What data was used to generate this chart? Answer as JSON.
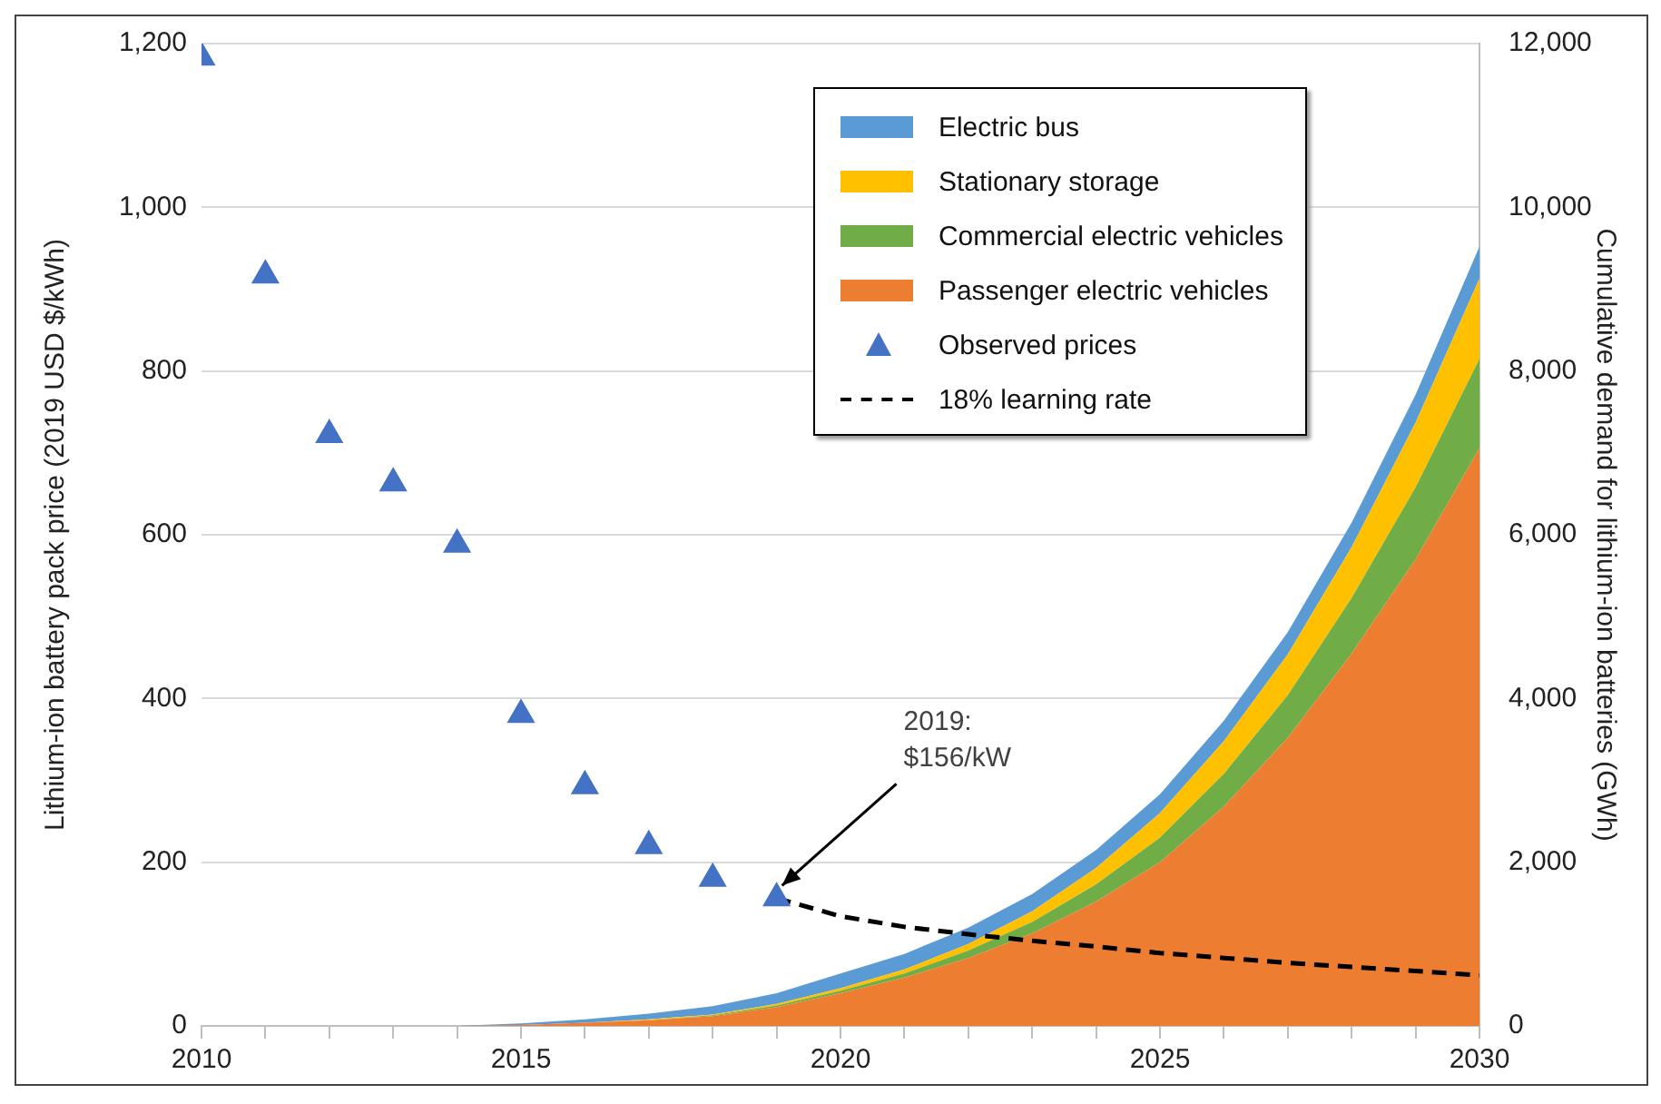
{
  "chart_data": {
    "type": "area",
    "ylabel": "Lithium-ion battery pack price (2019 USD $/kWh)",
    "y2label": "Cumulative demand for lithium-ion batteries (GWh)",
    "x": [
      2010,
      2011,
      2012,
      2013,
      2014,
      2015,
      2016,
      2017,
      2018,
      2019,
      2020,
      2021,
      2022,
      2023,
      2024,
      2025,
      2026,
      2027,
      2028,
      2029,
      2030
    ],
    "xlim": [
      2010,
      2030
    ],
    "xticks": [
      2010,
      {
        "value": 2011,
        "label": null
      },
      {
        "value": 2012,
        "label": null
      },
      {
        "value": 2013,
        "label": null
      },
      {
        "value": 2014,
        "label": null
      },
      2015,
      {
        "value": 2016,
        "label": null
      },
      {
        "value": 2017,
        "label": null
      },
      {
        "value": 2018,
        "label": null
      },
      {
        "value": 2019,
        "label": null
      },
      2020,
      {
        "value": 2021,
        "label": null
      },
      {
        "value": 2022,
        "label": null
      },
      {
        "value": 2023,
        "label": null
      },
      {
        "value": 2024,
        "label": null
      },
      2025,
      {
        "value": 2026,
        "label": null
      },
      {
        "value": 2027,
        "label": null
      },
      {
        "value": 2028,
        "label": null
      },
      {
        "value": 2029,
        "label": null
      },
      2030
    ],
    "ylim": [
      0,
      1200
    ],
    "yticks": [
      0,
      200,
      400,
      600,
      800,
      {
        "value": 1000,
        "label": "1,000"
      },
      {
        "value": 1200,
        "label": "1,200"
      }
    ],
    "y2lim": [
      0,
      12000
    ],
    "y2ticks": [
      0,
      {
        "value": 2000,
        "label": "2,000"
      },
      {
        "value": 4000,
        "label": "4,000"
      },
      {
        "value": 6000,
        "label": "6,000"
      },
      {
        "value": 8000,
        "label": "8,000"
      },
      {
        "value": 10000,
        "label": "10,000"
      },
      {
        "value": 12000,
        "label": "12,000"
      }
    ],
    "stacked": true,
    "grid": "y",
    "legend": "top right",
    "series": [
      {
        "name": "Passenger electric vehicles",
        "axis": "y2",
        "color": "#ed7d31",
        "values": [
          0,
          0,
          0,
          0,
          0,
          10,
          40,
          70,
          120,
          230,
          400,
          590,
          830,
          1130,
          1520,
          2000,
          2680,
          3520,
          4550,
          5700,
          7060
        ]
      },
      {
        "name": "Commercial electric vehicles",
        "axis": "y2",
        "color": "#70ad47",
        "values": [
          0,
          0,
          0,
          0,
          0,
          0,
          0,
          0,
          10,
          20,
          30,
          50,
          90,
          140,
          210,
          300,
          400,
          520,
          680,
          880,
          1090
        ]
      },
      {
        "name": "Stationary storage",
        "axis": "y2",
        "color": "#ffc000",
        "values": [
          0,
          0,
          0,
          0,
          0,
          0,
          0,
          10,
          10,
          20,
          30,
          50,
          80,
          130,
          200,
          300,
          400,
          500,
          620,
          790,
          980
        ]
      },
      {
        "name": "Electric bus",
        "axis": "y2",
        "color": "#5b9bd5",
        "values": [
          0,
          0,
          0,
          0,
          0,
          20,
          40,
          70,
          100,
          130,
          180,
          190,
          200,
          210,
          220,
          230,
          250,
          270,
          300,
          340,
          390
        ]
      },
      {
        "name": "Observed prices",
        "type": "scatter",
        "axis": "y",
        "color": "#4472c4",
        "marker": "triangle",
        "x": [
          2010,
          2011,
          2012,
          2013,
          2014,
          2015,
          2016,
          2017,
          2018,
          2019
        ],
        "values": [
          1183,
          917,
          722,
          663,
          588,
          380,
          293,
          220,
          180,
          156
        ]
      },
      {
        "name": "18% learning rate",
        "type": "line",
        "axis": "y",
        "color": "#000000",
        "line_style": "dashed",
        "marker": "none",
        "x": [
          2019,
          2020,
          2021,
          2022,
          2023,
          2024,
          2025,
          2026,
          2027,
          2028,
          2029,
          2030
        ],
        "values": [
          156,
          134,
          121,
          112,
          104,
          97,
          89,
          83,
          77,
          72,
          67,
          62
        ]
      }
    ],
    "annotations": [
      {
        "text": "2019:\n$156/kW",
        "x": 2019,
        "y": 156
      }
    ]
  }
}
